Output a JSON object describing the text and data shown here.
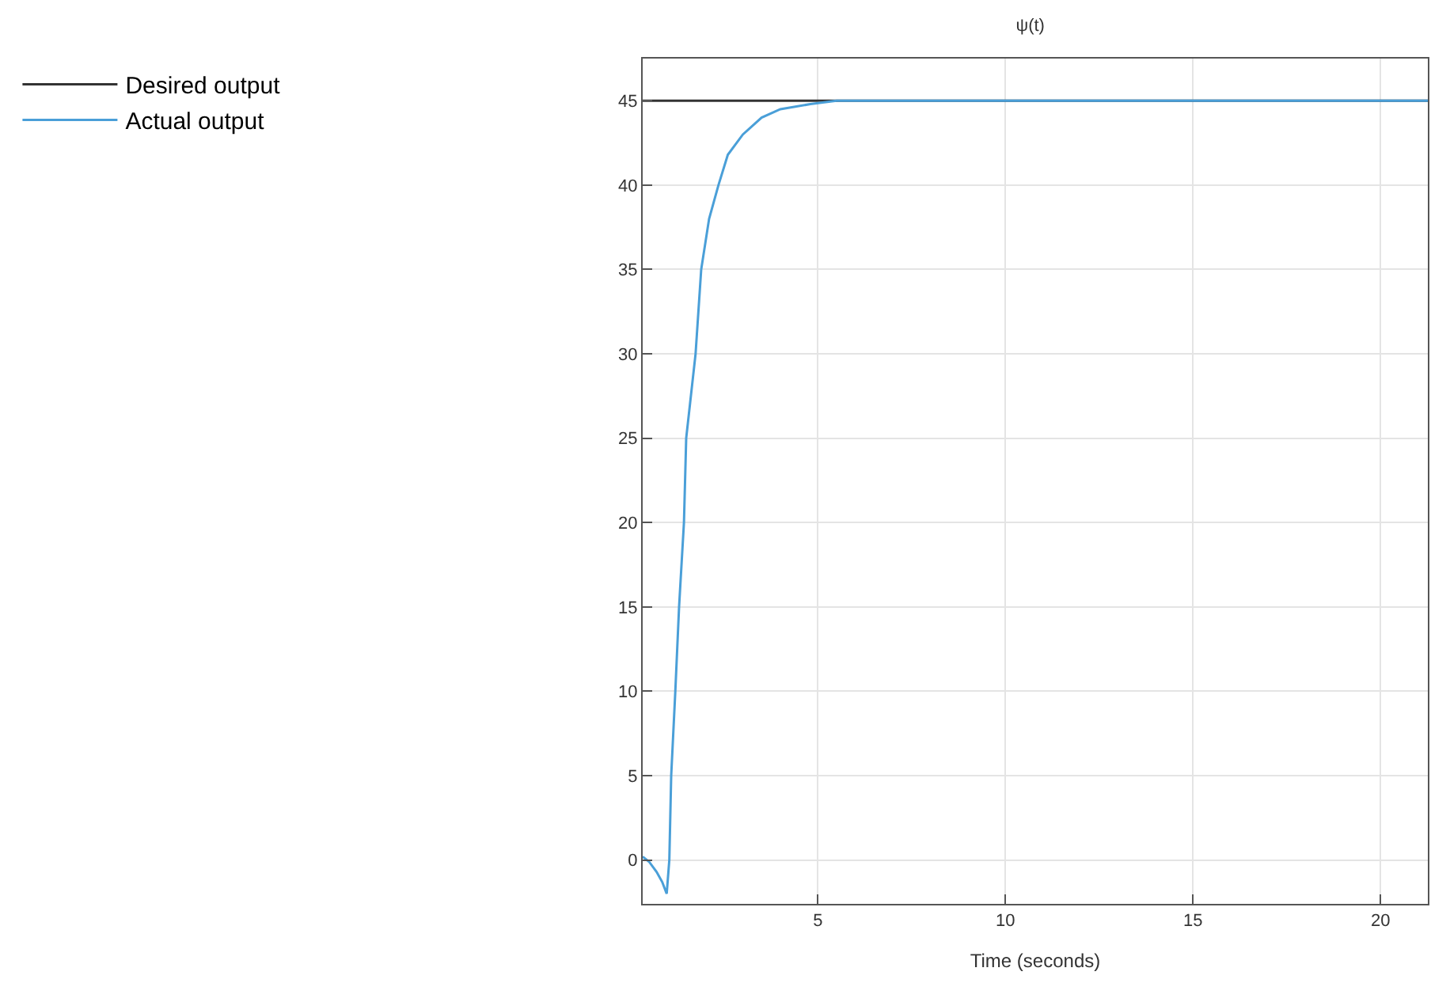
{
  "chart_data": {
    "type": "line",
    "title": "ψ(t)",
    "xlabel": "Time (seconds)",
    "xlim": [
      0.33,
      21.26
    ],
    "ylim": [
      -2.6,
      47.5
    ],
    "xticks": [
      5,
      10,
      15,
      20
    ],
    "yticks": [
      0,
      5,
      10,
      15,
      20,
      25,
      30,
      35,
      40,
      45
    ],
    "grid": true,
    "legend": "left",
    "marker": "none",
    "line_style": "solid",
    "series": [
      {
        "name": "Desired output",
        "color": "#333333",
        "x": [
          0.33,
          21.26
        ],
        "values": [
          45,
          45
        ]
      },
      {
        "name": "Actual output",
        "color": "#4a9fd8",
        "x": [
          0.33,
          0.5,
          0.7,
          0.85,
          0.97,
          1.04,
          1.09,
          1.2,
          1.3,
          1.43,
          1.49,
          1.74,
          1.89,
          2.1,
          2.35,
          2.6,
          3.0,
          3.5,
          4.0,
          4.8,
          5.5,
          10,
          15,
          21.26
        ],
        "values": [
          0.2,
          -0.1,
          -0.7,
          -1.3,
          -2.0,
          0,
          5,
          10,
          15,
          20,
          25,
          30,
          35,
          38,
          40,
          41.8,
          43,
          44,
          44.5,
          44.8,
          45,
          45,
          45,
          45
        ]
      }
    ]
  }
}
